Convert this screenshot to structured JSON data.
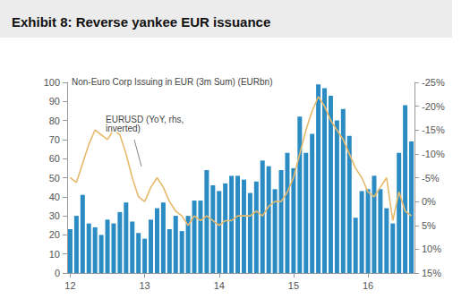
{
  "chart_data": {
    "type": "bar",
    "title": "Exhibit 8: Reverse yankee EUR issuance",
    "categories": [
      "12",
      null,
      null,
      null,
      null,
      null,
      null,
      null,
      null,
      null,
      null,
      null,
      "13",
      null,
      null,
      null,
      null,
      null,
      null,
      null,
      null,
      null,
      null,
      null,
      "14",
      null,
      null,
      null,
      null,
      null,
      null,
      null,
      null,
      null,
      null,
      null,
      "15",
      null,
      null,
      null,
      null,
      null,
      null,
      null,
      null,
      null,
      null,
      null,
      "16",
      null,
      null,
      null,
      null,
      null,
      null,
      null
    ],
    "series": [
      {
        "name": "Non-Euro Corp Issuing in EUR (3m Sum) (EURbn)",
        "type": "bar",
        "color": "#2b8cc4",
        "values": [
          23,
          30,
          41,
          26,
          24,
          20,
          28,
          26,
          32,
          37,
          27,
          21,
          18,
          28,
          34,
          37,
          23,
          30,
          22,
          30,
          38,
          38,
          54,
          46,
          43,
          47,
          51,
          51,
          49,
          42,
          48,
          59,
          56,
          44,
          54,
          63,
          55,
          82,
          63,
          73,
          99,
          97,
          93,
          80,
          86,
          72,
          29,
          43,
          44,
          51,
          44,
          34,
          26,
          63,
          88,
          69
        ]
      },
      {
        "name": "EURUSD (YoY, rhs, inverted)",
        "type": "line",
        "axis": "y2",
        "color": "#e6b96b",
        "values": [
          -5,
          -4,
          -8,
          -12,
          -15,
          -14,
          -13,
          -15,
          -14,
          -10,
          -5,
          -1,
          0,
          -3,
          -5,
          -3,
          0,
          2,
          3,
          5,
          3,
          4,
          3,
          4,
          5,
          4,
          4,
          3,
          3,
          3,
          2,
          3,
          1,
          0,
          0,
          -2,
          -5,
          -10,
          -15,
          -19,
          -22,
          -20,
          -17,
          -15,
          -13,
          -10,
          -7,
          -5,
          -2,
          -1,
          -3,
          -5,
          4,
          -2,
          2,
          3
        ]
      }
    ],
    "ylim": [
      0,
      100
    ],
    "yticks": [
      0,
      10,
      20,
      30,
      40,
      50,
      60,
      70,
      80,
      90,
      100
    ],
    "y2lim": [
      15,
      -25
    ],
    "y2ticks": [
      {
        "value": -25,
        "label": "-25%"
      },
      {
        "value": -20,
        "label": "-20%"
      },
      {
        "value": -15,
        "label": "-15%"
      },
      {
        "value": -10,
        "label": "-10%"
      },
      {
        "value": -5,
        "label": "-5%"
      },
      {
        "value": 0,
        "label": "0%"
      },
      {
        "value": 5,
        "label": "5%"
      },
      {
        "value": 10,
        "label": "10%"
      },
      {
        "value": 15,
        "label": "15%"
      }
    ],
    "grid": false
  }
}
